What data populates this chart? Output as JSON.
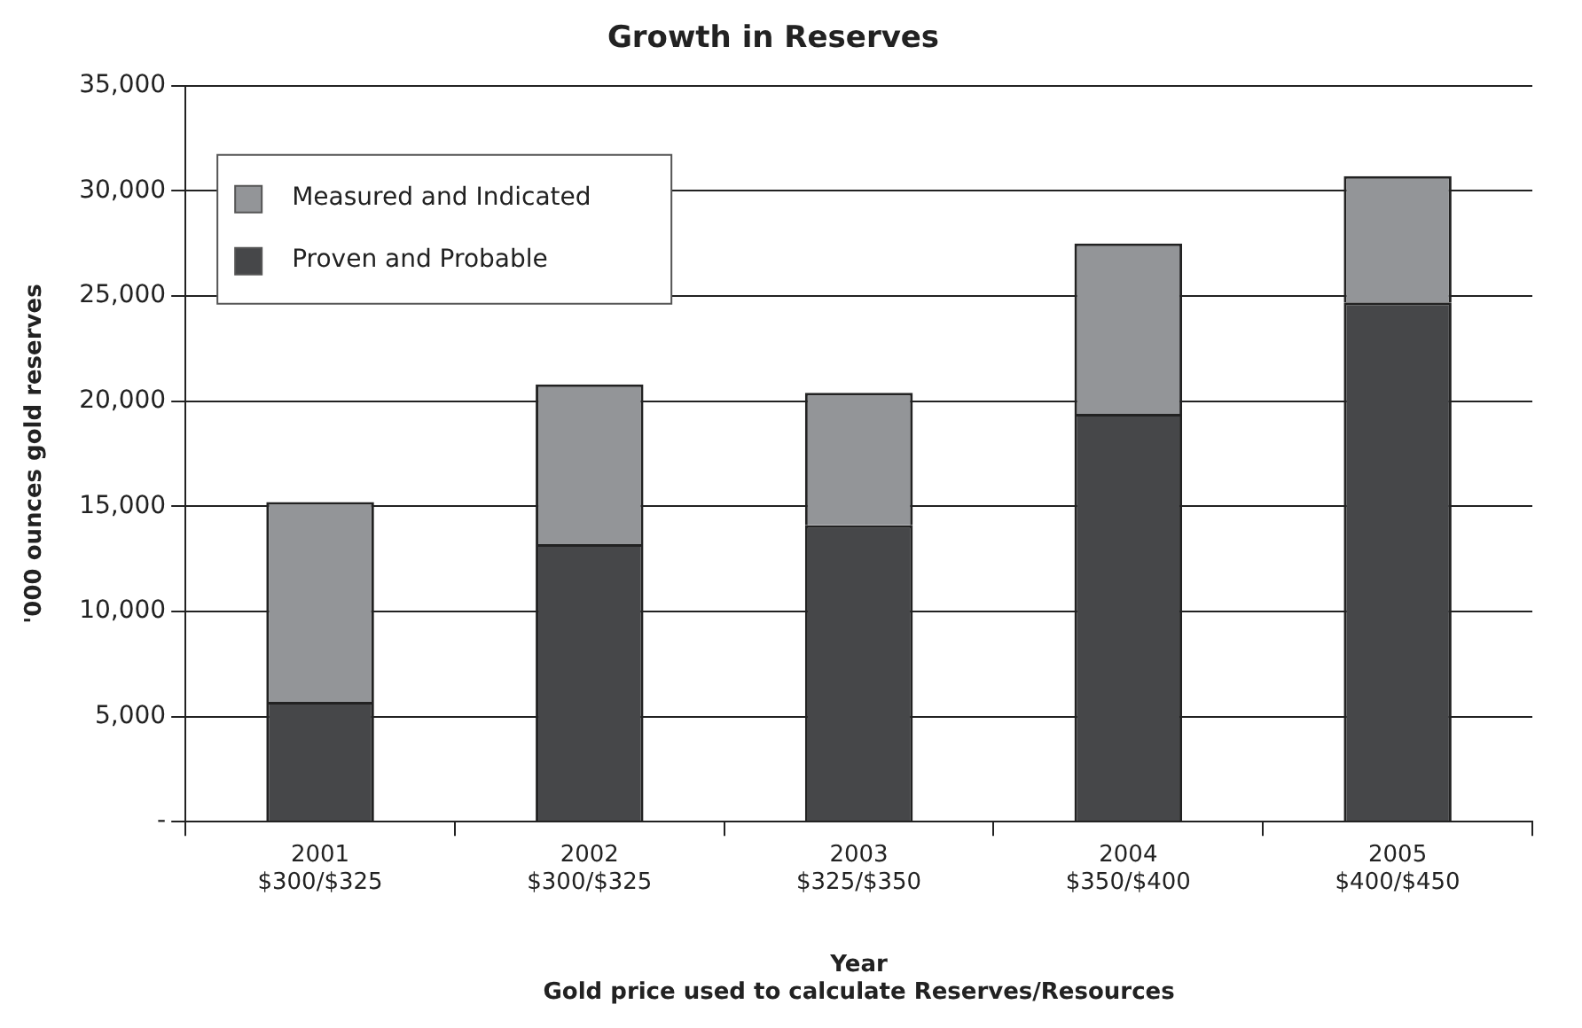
{
  "chart_data": {
    "type": "bar",
    "title": "Growth in Reserves",
    "xlabel": "Year\nGold price used to calculate Reserves/Resources",
    "ylabel": "'000 ounces gold reserves",
    "categories": [
      "2001\n$300/$325",
      "2002\n$300/$325",
      "2003\n$325/$350",
      "2004\n$350/$400",
      "2005\n$400/$450"
    ],
    "series": [
      {
        "name": "Proven and Probable",
        "color": "#464749",
        "values": [
          5700,
          13200,
          14100,
          19400,
          24700
        ]
      },
      {
        "name": "Measured and Indicated",
        "color": "#939598",
        "values": [
          9500,
          7600,
          6300,
          8100,
          6000
        ]
      }
    ],
    "stacked": true,
    "ylim": [
      0,
      35000
    ],
    "yticks": [
      {
        "value": 0,
        "label": "-"
      },
      {
        "value": 5000,
        "label": "5,000"
      },
      {
        "value": 10000,
        "label": "10,000"
      },
      {
        "value": 15000,
        "label": "15,000"
      },
      {
        "value": 20000,
        "label": "20,000"
      },
      {
        "value": 25000,
        "label": "25,000"
      },
      {
        "value": 30000,
        "label": "30,000"
      },
      {
        "value": 35000,
        "label": "35,000"
      }
    ],
    "grid": "y",
    "legend": "top left"
  }
}
